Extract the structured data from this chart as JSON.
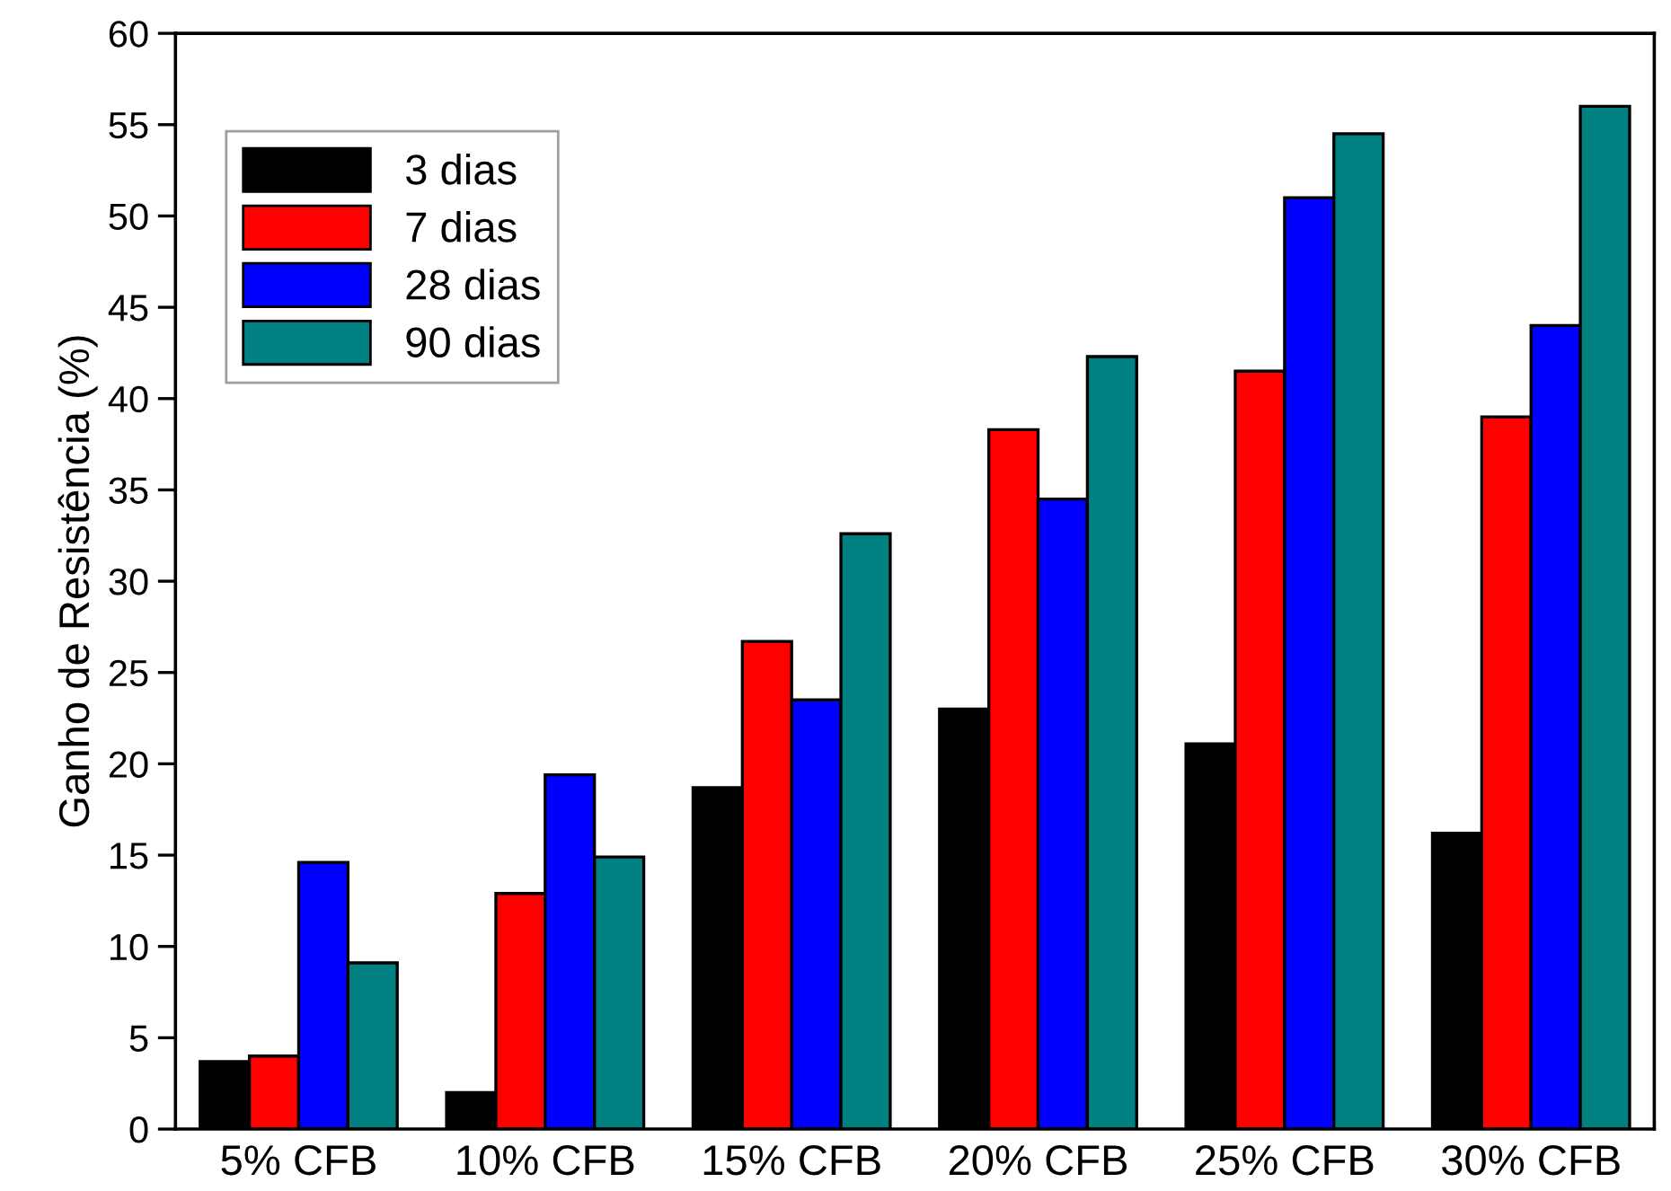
{
  "chart_data": {
    "type": "bar",
    "ylabel": "Ganho de Resistência (%)",
    "categories": [
      "5% CFB",
      "10% CFB",
      "15% CFB",
      "20% CFB",
      "25% CFB",
      "30% CFB"
    ],
    "series": [
      {
        "name": "3 dias",
        "color": "#000000",
        "values": [
          3.7,
          2.0,
          18.7,
          23.0,
          21.1,
          16.2
        ]
      },
      {
        "name": "7 dias",
        "color": "#ff0000",
        "values": [
          4.0,
          12.9,
          26.7,
          38.3,
          41.5,
          39.0
        ]
      },
      {
        "name": "28 dias",
        "color": "#0000ff",
        "values": [
          14.6,
          19.4,
          23.5,
          34.5,
          51.0,
          44.0
        ]
      },
      {
        "name": "90 dias",
        "color": "#008080",
        "values": [
          9.1,
          14.9,
          32.6,
          42.3,
          54.5,
          56.0
        ]
      }
    ],
    "ylim": [
      0,
      60
    ],
    "yticks": [
      0,
      5,
      10,
      15,
      20,
      25,
      30,
      35,
      40,
      45,
      50,
      55,
      60
    ],
    "grid": false,
    "legend": "top left"
  }
}
